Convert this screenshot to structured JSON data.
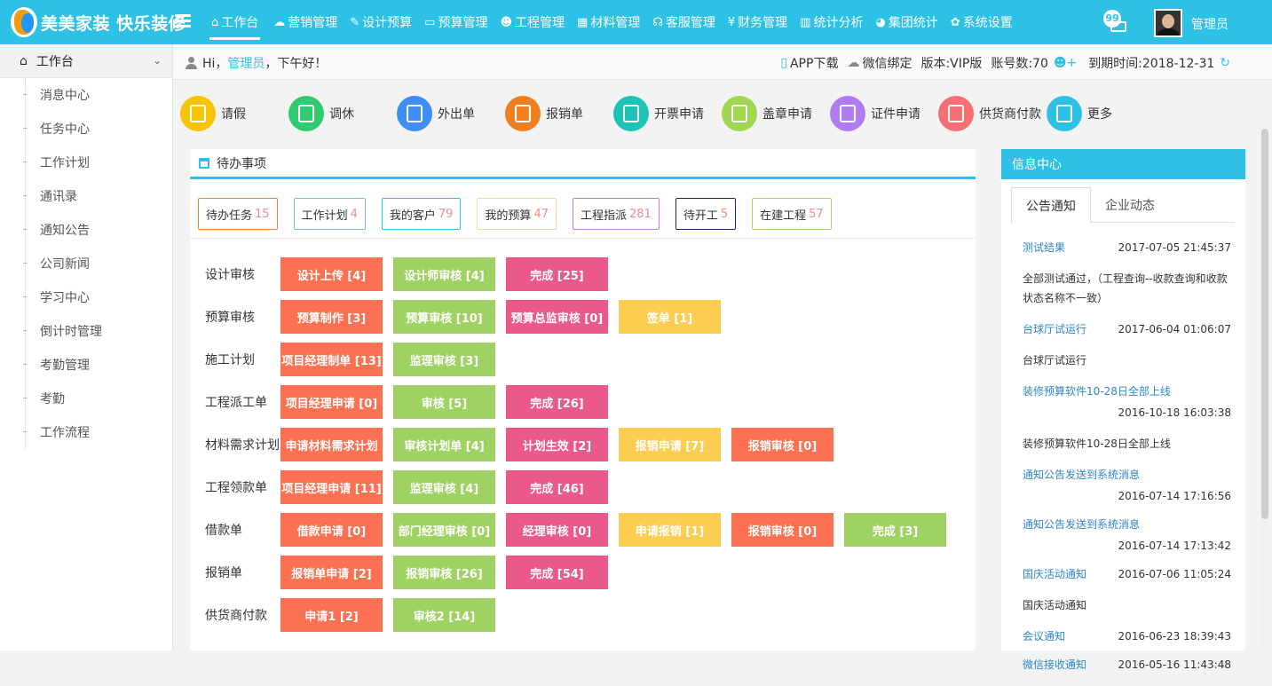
{
  "brand": {
    "name": "美美家装 快乐装修"
  },
  "topnav": [
    {
      "label": "工作台",
      "icon": "home-icon",
      "glyph": "⌂"
    },
    {
      "label": "营销管理",
      "icon": "chat-icon",
      "glyph": "☁"
    },
    {
      "label": "设计预算",
      "icon": "edit-icon",
      "glyph": "✎"
    },
    {
      "label": "预算管理",
      "icon": "monitor-icon",
      "glyph": "▭"
    },
    {
      "label": "工程管理",
      "icon": "team-icon",
      "glyph": "☻"
    },
    {
      "label": "材料管理",
      "icon": "grid-icon",
      "glyph": "▦"
    },
    {
      "label": "客服管理",
      "icon": "headset-icon",
      "glyph": "☊"
    },
    {
      "label": "财务管理",
      "icon": "yen-icon",
      "glyph": "¥"
    },
    {
      "label": "统计分析",
      "icon": "bar-chart-icon",
      "glyph": "▥"
    },
    {
      "label": "集团统计",
      "icon": "pie-chart-icon",
      "glyph": "◕"
    },
    {
      "label": "系统设置",
      "icon": "gear-icon",
      "glyph": "✿"
    }
  ],
  "header": {
    "msg_count": "99",
    "user": "管理员"
  },
  "sidebar": {
    "head": "工作台",
    "items": [
      "消息中心",
      "任务中心",
      "工作计划",
      "通讯录",
      "通知公告",
      "公司新闻",
      "学习中心",
      "倒计时管理",
      "考勤管理",
      "考勤",
      "工作流程"
    ]
  },
  "greeting": {
    "pre": "Hi，",
    "user": "管理员",
    "post": "，下午好！"
  },
  "topinfo": {
    "app": "APP下载",
    "wechat": "微信绑定",
    "version": "版本:VIP版",
    "accounts": "账号数:70",
    "expire": "到期时间:2018-12-31"
  },
  "quick": [
    {
      "label": "请假",
      "color": "#f6c400",
      "icon": "leave-icon"
    },
    {
      "label": "调休",
      "color": "#2fcb6e",
      "icon": "clock-icon"
    },
    {
      "label": "外出单",
      "color": "#3d8ef7",
      "icon": "outing-icon"
    },
    {
      "label": "报销单",
      "color": "#f07f1f",
      "icon": "reimburse-icon"
    },
    {
      "label": "开票申请",
      "color": "#1dc4b6",
      "icon": "invoice-icon"
    },
    {
      "label": "盖章申请",
      "color": "#9fd653",
      "icon": "stamp-icon"
    },
    {
      "label": "证件申请",
      "color": "#b17cf2",
      "icon": "certificate-icon"
    },
    {
      "label": "供货商付款",
      "color": "#f56f73",
      "icon": "supplier-pay-icon"
    },
    {
      "label": "更多",
      "color": "#2ec1e6",
      "icon": "more-icon"
    }
  ],
  "todo": {
    "title": "待办事项",
    "tags": [
      {
        "label": "待办任务",
        "count": "15",
        "color": "#f08042"
      },
      {
        "label": "工作计划",
        "count": "4",
        "color": "#7fb7e0"
      },
      {
        "label": "我的客户",
        "count": "79",
        "color": "#2ec1e6"
      },
      {
        "label": "我的预算",
        "count": "47",
        "color": "#f5d7a8"
      },
      {
        "label": "工程指派",
        "count": "281",
        "color": "#b77be8"
      },
      {
        "label": "待开工",
        "count": "5",
        "color": "#1a237e"
      },
      {
        "label": "在建工程",
        "count": "57",
        "color": "#a5d66a"
      }
    ],
    "rows": [
      {
        "label": "设计审核",
        "buttons": [
          [
            "设计上传 [4]",
            "#fb7151"
          ],
          [
            "设计师审核 [4]",
            "#9fd262"
          ],
          [
            "完成 [25]",
            "#e95a89"
          ]
        ]
      },
      {
        "label": "预算审核",
        "buttons": [
          [
            "预算制作 [3]",
            "#fb7151"
          ],
          [
            "预算审核 [10]",
            "#9fd262"
          ],
          [
            "预算总监审核 [0]",
            "#e95a89"
          ],
          [
            "签单 [1]",
            "#fdcd51"
          ]
        ]
      },
      {
        "label": "施工计划",
        "buttons": [
          [
            "项目经理制单 [13]",
            "#fb7151"
          ],
          [
            "监理审核 [3]",
            "#9fd262"
          ]
        ]
      },
      {
        "label": "工程派工单",
        "buttons": [
          [
            "项目经理申请 [0]",
            "#fb7151"
          ],
          [
            "审核 [5]",
            "#9fd262"
          ],
          [
            "完成 [26]",
            "#e95a89"
          ]
        ]
      },
      {
        "label": "材料需求计划",
        "buttons": [
          [
            "申请材料需求计划",
            "#fb7151"
          ],
          [
            "审核计划单 [4]",
            "#9fd262"
          ],
          [
            "计划生效 [2]",
            "#e95a89"
          ],
          [
            "报销申请 [7]",
            "#fdcd51"
          ],
          [
            "报销审核 [0]",
            "#fb7151"
          ]
        ]
      },
      {
        "label": "工程领款单",
        "buttons": [
          [
            "项目经理申请 [11]",
            "#fb7151"
          ],
          [
            "监理审核 [4]",
            "#9fd262"
          ],
          [
            "完成 [46]",
            "#e95a89"
          ]
        ]
      },
      {
        "label": "借款单",
        "buttons": [
          [
            "借款申请 [0]",
            "#fb7151"
          ],
          [
            "部门经理审核 [0]",
            "#9fd262"
          ],
          [
            "经理审核 [0]",
            "#e95a89"
          ],
          [
            "申请报销 [1]",
            "#fdcd51"
          ],
          [
            "报销审核 [0]",
            "#fb7151"
          ],
          [
            "完成 [3]",
            "#9fd262"
          ]
        ]
      },
      {
        "label": "报销单",
        "buttons": [
          [
            "报销单申请 [2]",
            "#fb7151"
          ],
          [
            "报销审核 [26]",
            "#9fd262"
          ],
          [
            "完成 [54]",
            "#e95a89"
          ]
        ]
      },
      {
        "label": "供货商付款",
        "buttons": [
          [
            "申请1 [2]",
            "#fb7151"
          ],
          [
            "审核2 [14]",
            "#9fd262"
          ]
        ]
      }
    ]
  },
  "info": {
    "title": "信息中心",
    "tabs": [
      "公告通知",
      "企业动态"
    ],
    "news": [
      {
        "title": "测试结果",
        "date": "2017-07-05 21:45:37",
        "inline": true
      },
      {
        "text": "全部测试通过，（工程查询--收款查询和收款状态名称不一致）"
      },
      {
        "title": "台球厅试运行",
        "date": "2017-06-04 01:06:07",
        "inline": true
      },
      {
        "text": "台球厅试运行"
      },
      {
        "title": "装修预算软件10-28日全部上线",
        "date": "2016-10-18 16:03:38",
        "inline": false
      },
      {
        "text": "装修预算软件10-28日全部上线"
      },
      {
        "title": "通知公告发送到系统消息",
        "date": "2016-07-14 17:16:56",
        "inline": false
      },
      {
        "title": "通知公告发送到系统消息",
        "date": "2016-07-14 17:13:42",
        "inline": false
      },
      {
        "title": "国庆活动通知",
        "date": "2016-07-06 11:05:24",
        "inline": true
      },
      {
        "text": "国庆活动通知"
      },
      {
        "title": "会议通知",
        "date": "2016-06-23 18:39:43",
        "inline": true
      },
      {
        "title": "微信接收通知",
        "date": "2016-05-16 11:43:48",
        "inline": true
      }
    ]
  }
}
